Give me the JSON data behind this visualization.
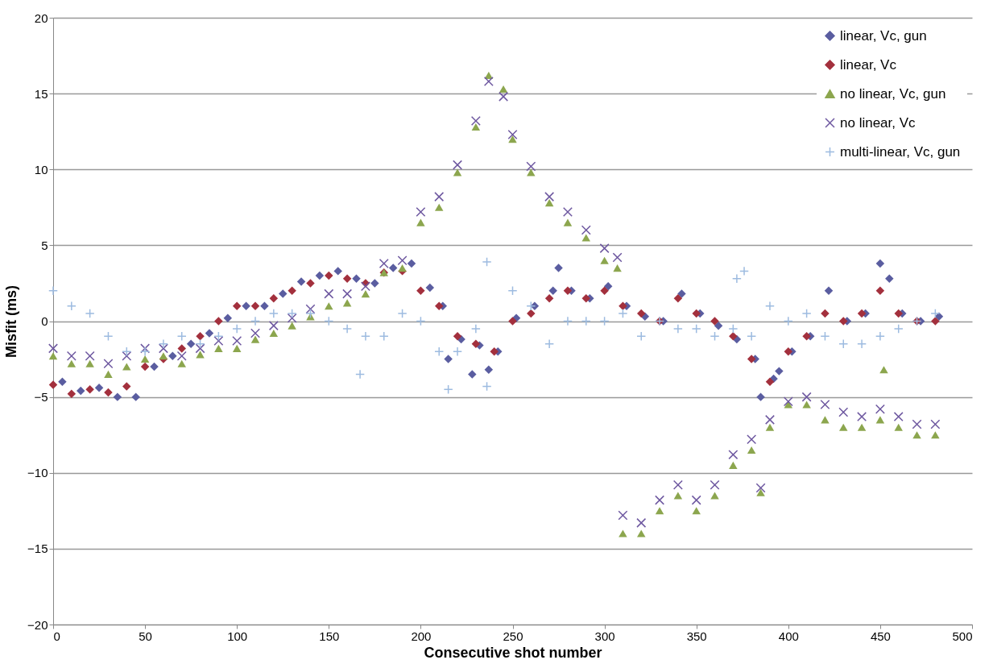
{
  "chart_data": {
    "type": "scatter",
    "xlabel": "Consecutive shot number",
    "ylabel": "Misfit (ms)",
    "xlim": [
      0,
      500
    ],
    "xticks": [
      0,
      50,
      100,
      150,
      200,
      250,
      300,
      350,
      400,
      450,
      500
    ],
    "ylim": [
      -20,
      20
    ],
    "yticks": [
      -20,
      -15,
      -10,
      -5,
      0,
      5,
      10,
      15,
      20
    ],
    "grid": "y",
    "legend": "top right",
    "series": [
      {
        "name": "linear, Vc, gun",
        "color": "#5a5da0",
        "marker": "diamond",
        "x": [
          5,
          15,
          25,
          35,
          45,
          55,
          65,
          75,
          85,
          95,
          105,
          115,
          125,
          135,
          145,
          155,
          165,
          175,
          185,
          195,
          205,
          212,
          215,
          222,
          228,
          232,
          237,
          242,
          252,
          262,
          272,
          275,
          282,
          292,
          302,
          312,
          322,
          332,
          342,
          352,
          362,
          372,
          382,
          385,
          392,
          395,
          402,
          412,
          422,
          432,
          442,
          450,
          455,
          462,
          472,
          482
        ],
        "values": [
          -4.0,
          -4.6,
          -4.4,
          -5.0,
          -5.0,
          -3.0,
          -2.3,
          -1.5,
          -0.8,
          0.2,
          1.0,
          1.0,
          1.8,
          2.6,
          3.0,
          3.3,
          2.8,
          2.5,
          3.5,
          3.8,
          2.2,
          1.0,
          -2.5,
          -1.2,
          -3.5,
          -1.6,
          -3.2,
          -2.0,
          0.2,
          1.0,
          2.0,
          3.5,
          2.0,
          1.5,
          2.3,
          1.0,
          0.3,
          0.0,
          1.8,
          0.5,
          -0.3,
          -1.2,
          -2.5,
          -5.0,
          -3.8,
          -3.3,
          -2.0,
          -1.0,
          2.0,
          0.0,
          0.5,
          3.8,
          2.8,
          0.5,
          0.0,
          0.3
        ]
      },
      {
        "name": "linear, Vc",
        "color": "#a3303d",
        "marker": "diamond",
        "x": [
          0,
          10,
          20,
          30,
          40,
          50,
          60,
          70,
          80,
          90,
          100,
          110,
          120,
          130,
          140,
          150,
          160,
          170,
          180,
          190,
          200,
          210,
          220,
          230,
          240,
          250,
          260,
          270,
          280,
          290,
          300,
          310,
          320,
          330,
          340,
          350,
          360,
          370,
          380,
          390,
          400,
          410,
          420,
          430,
          440,
          450,
          460,
          470,
          480
        ],
        "values": [
          -4.2,
          -4.8,
          -4.5,
          -4.7,
          -4.3,
          -3.0,
          -2.5,
          -1.8,
          -1.0,
          0.0,
          1.0,
          1.0,
          1.5,
          2.0,
          2.5,
          3.0,
          2.8,
          2.5,
          3.2,
          3.3,
          2.0,
          1.0,
          -1.0,
          -1.5,
          -2.0,
          0.0,
          0.5,
          1.5,
          2.0,
          1.5,
          2.0,
          1.0,
          0.5,
          0.0,
          1.5,
          0.5,
          0.0,
          -1.0,
          -2.5,
          -4.0,
          -2.0,
          -1.0,
          0.5,
          0.0,
          0.5,
          2.0,
          0.5,
          0.0,
          0.0
        ]
      },
      {
        "name": "no linear, Vc, gun",
        "color": "#8ca64e",
        "marker": "triangle",
        "x": [
          0,
          10,
          20,
          30,
          40,
          50,
          60,
          70,
          80,
          90,
          100,
          110,
          120,
          130,
          140,
          150,
          160,
          170,
          180,
          190,
          200,
          210,
          220,
          230,
          237,
          245,
          250,
          260,
          270,
          280,
          290,
          300,
          307,
          310,
          320,
          330,
          340,
          350,
          360,
          370,
          380,
          385,
          390,
          400,
          410,
          420,
          430,
          440,
          450,
          452,
          460,
          470,
          480
        ],
        "values": [
          -2.3,
          -2.8,
          -2.8,
          -3.5,
          -3.0,
          -2.5,
          -2.3,
          -2.8,
          -2.2,
          -1.8,
          -1.8,
          -1.2,
          -0.8,
          -0.3,
          0.3,
          1.0,
          1.2,
          1.8,
          3.2,
          3.5,
          6.5,
          7.5,
          9.8,
          12.8,
          16.2,
          15.3,
          12.0,
          9.8,
          7.8,
          6.5,
          5.5,
          4.0,
          3.5,
          -14.0,
          -14.0,
          -12.5,
          -11.5,
          -12.5,
          -11.5,
          -9.5,
          -8.5,
          -11.3,
          -7.0,
          -5.5,
          -5.5,
          -6.5,
          -7.0,
          -7.0,
          -6.5,
          -3.2,
          -7.0,
          -7.5,
          -7.5
        ]
      },
      {
        "name": "no linear, Vc",
        "color": "#6e58a0",
        "marker": "x",
        "x": [
          0,
          10,
          20,
          30,
          40,
          50,
          60,
          70,
          80,
          90,
          100,
          110,
          120,
          130,
          140,
          150,
          160,
          170,
          180,
          190,
          200,
          210,
          220,
          230,
          237,
          245,
          250,
          260,
          270,
          280,
          290,
          300,
          307,
          310,
          320,
          330,
          340,
          350,
          360,
          370,
          380,
          385,
          390,
          400,
          410,
          420,
          430,
          440,
          450,
          460,
          470,
          480
        ],
        "values": [
          -1.8,
          -2.3,
          -2.3,
          -2.8,
          -2.3,
          -1.8,
          -1.8,
          -2.3,
          -1.8,
          -1.3,
          -1.3,
          -0.8,
          -0.3,
          0.2,
          0.8,
          1.8,
          1.8,
          2.3,
          3.8,
          4.0,
          7.2,
          8.2,
          10.3,
          13.2,
          15.8,
          14.8,
          12.3,
          10.2,
          8.2,
          7.2,
          6.0,
          4.8,
          4.2,
          -12.8,
          -13.3,
          -11.8,
          -10.8,
          -11.8,
          -10.8,
          -8.8,
          -7.8,
          -11.0,
          -6.5,
          -5.3,
          -5.0,
          -5.5,
          -6.0,
          -6.3,
          -5.8,
          -6.3,
          -6.8,
          -6.8
        ]
      },
      {
        "name": "multi-linear, Vc, gun",
        "color": "#9dbbe0",
        "marker": "cross",
        "x": [
          0,
          10,
          20,
          30,
          40,
          50,
          60,
          70,
          80,
          90,
          100,
          110,
          120,
          130,
          140,
          150,
          160,
          167,
          170,
          180,
          190,
          200,
          210,
          215,
          220,
          230,
          236,
          236,
          250,
          260,
          270,
          280,
          290,
          300,
          310,
          320,
          330,
          340,
          350,
          360,
          370,
          372,
          376,
          380,
          390,
          400,
          410,
          420,
          430,
          440,
          450,
          460,
          470,
          480
        ],
        "values": [
          2.0,
          1.0,
          0.5,
          -1.0,
          -2.0,
          -2.0,
          -1.5,
          -1.0,
          -1.5,
          -1.0,
          -0.5,
          0.0,
          0.5,
          0.5,
          0.5,
          0.0,
          -0.5,
          -3.5,
          -1.0,
          -1.0,
          0.5,
          0.0,
          -2.0,
          -4.5,
          -2.0,
          -0.5,
          3.9,
          -4.3,
          2.0,
          1.0,
          -1.5,
          0.0,
          0.0,
          0.0,
          0.5,
          -1.0,
          0.0,
          -0.5,
          -0.5,
          -1.0,
          -0.5,
          2.8,
          3.3,
          -1.0,
          1.0,
          0.0,
          0.5,
          -1.0,
          -1.5,
          -1.5,
          -1.0,
          -0.5,
          0.0,
          0.5
        ]
      }
    ]
  }
}
